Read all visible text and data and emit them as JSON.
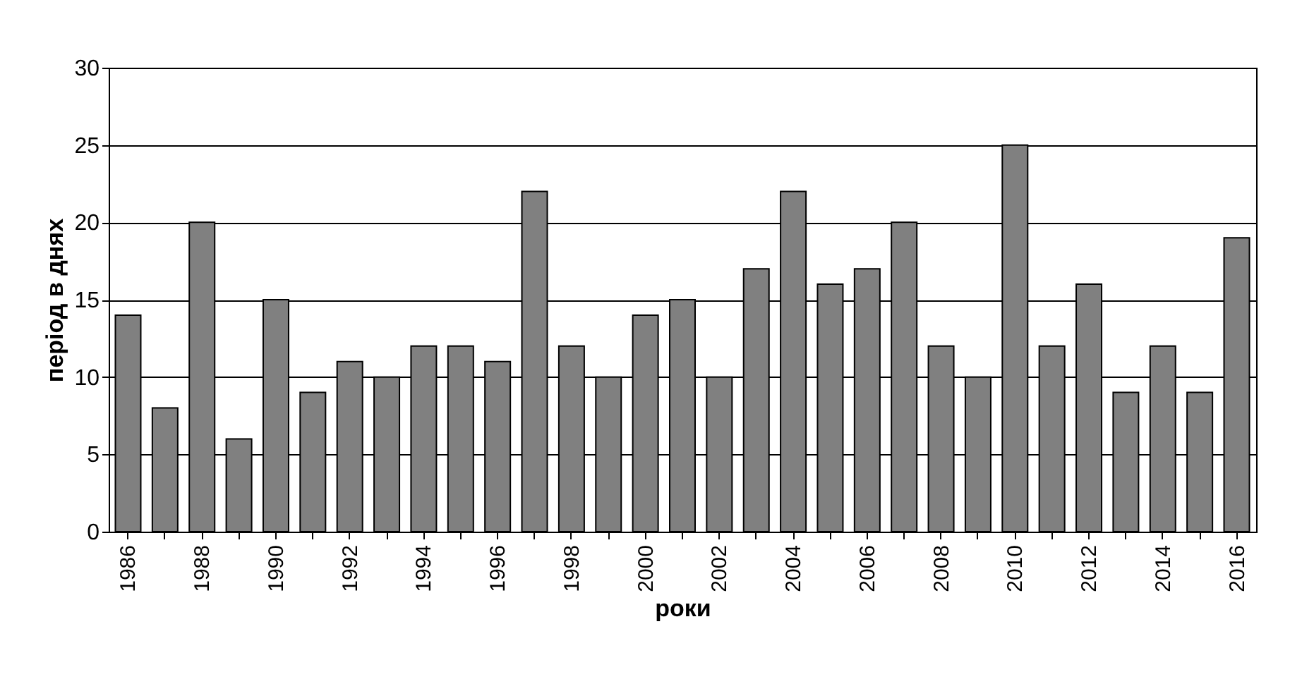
{
  "chart_data": {
    "type": "bar",
    "xlabel": "роки",
    "ylabel": "період в днях",
    "categories": [
      "1986",
      null,
      "1988",
      null,
      "1990",
      null,
      "1992",
      null,
      "1994",
      null,
      "1996",
      null,
      "1998",
      null,
      "2000",
      null,
      "2002",
      null,
      "2004",
      null,
      "2006",
      null,
      "2008",
      null,
      "2010",
      null,
      "2012",
      null,
      "2014",
      null,
      "2016"
    ],
    "values": [
      14,
      8,
      20,
      6,
      15,
      9,
      11,
      10,
      12,
      12,
      11,
      22,
      12,
      10,
      14,
      15,
      10,
      17,
      22,
      16,
      17,
      20,
      12,
      10,
      25,
      12,
      16,
      9,
      12,
      9,
      19
    ],
    "color": "#808080",
    "ylim": [
      0,
      30
    ],
    "yticks": [
      0,
      5,
      10,
      15,
      20,
      25,
      30
    ],
    "grid": "y"
  }
}
